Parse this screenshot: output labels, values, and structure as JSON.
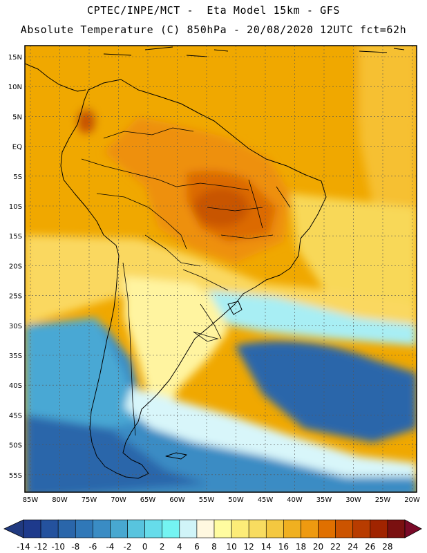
{
  "header": {
    "line1": "CPTEC/INPE/MCT -  Eta Model 15km - GFS",
    "line2": "Absolute Temperature (C) 850hPa - 20/08/2020 12UTC fct=62h"
  },
  "map": {
    "lat_labels": [
      "15N",
      "10N",
      "5N",
      "EQ",
      "5S",
      "10S",
      "15S",
      "20S",
      "25S",
      "30S",
      "35S",
      "40S",
      "45S",
      "50S",
      "55S"
    ],
    "lon_labels": [
      "85W",
      "80W",
      "75W",
      "70W",
      "65W",
      "60W",
      "55W",
      "50W",
      "45W",
      "40W",
      "35W",
      "30W",
      "25W",
      "20W"
    ],
    "background_color": "#f0a800"
  },
  "colorbar": {
    "tick_labels": [
      "-14",
      "-12",
      "-10",
      "-8",
      "-6",
      "-4",
      "-2",
      "0",
      "2",
      "4",
      "6",
      "8",
      "10",
      "12",
      "14",
      "16",
      "18",
      "20",
      "22",
      "24",
      "26",
      "28"
    ],
    "colors": [
      "#1e3a8c",
      "#24529e",
      "#2a66aa",
      "#3078b8",
      "#3a8cc4",
      "#48a8d0",
      "#58c4de",
      "#66dcea",
      "#74f4f2",
      "#d0f4f8",
      "#fff8e0",
      "#fffca0",
      "#fcec78",
      "#f8dc60",
      "#f4c840",
      "#f0b020",
      "#ee9a10",
      "#e07000",
      "#cc5400",
      "#b83c00",
      "#a02400",
      "#7a1010"
    ],
    "under_color": "#213a80",
    "over_color": "#7a0a28"
  }
}
